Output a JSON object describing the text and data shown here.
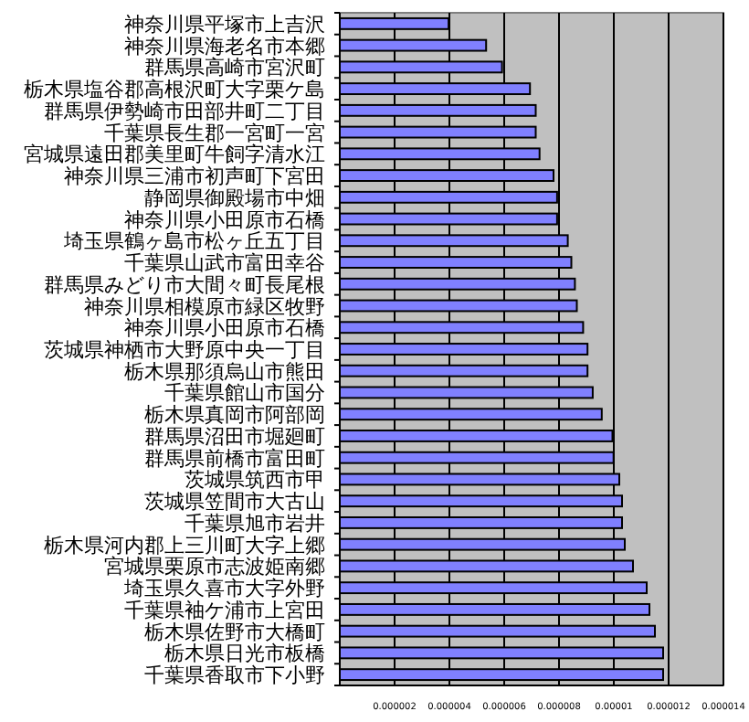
{
  "chart_data": {
    "type": "bar",
    "orientation": "horizontal",
    "categories": [
      "神奈川県平塚市上吉沢",
      "神奈川県海老名市本郷",
      "群馬県高崎市宮沢町",
      "栃木県塩谷郡高根沢町大字栗ケ島",
      "群馬県伊勢崎市田部井町二丁目",
      "千葉県長生郡一宮町一宮",
      "宮城県遠田郡美里町牛飼字清水江",
      "神奈川県三浦市初声町下宮田",
      "静岡県御殿場市中畑",
      "神奈川県小田原市石橋",
      "埼玉県鶴ヶ島市松ヶ丘五丁目",
      "千葉県山武市富田幸谷",
      "群馬県みどり市大間々町長尾根",
      "神奈川県相模原市緑区牧野",
      "神奈川県小田原市石橋",
      "茨城県神栖市大野原中央一丁目",
      "栃木県那須烏山市熊田",
      "千葉県館山市国分",
      "栃木県真岡市阿部岡",
      "群馬県沼田市堀廻町",
      "群馬県前橋市富田町",
      "茨城県筑西市甲",
      "茨城県笠間市大古山",
      "千葉県旭市岩井",
      "栃木県河内郡上三川町大字上郷",
      "宮城県栗原市志波姫南郷",
      "埼玉県久喜市大字外野",
      "千葉県袖ケ浦市上宮田",
      "栃木県佐野市大橋町",
      "栃木県日光市板橋",
      "千葉県香取市下小野"
    ],
    "values": [
      3.97e-06,
      5.34e-06,
      5.92e-06,
      6.94e-06,
      7.15e-06,
      7.15e-06,
      7.29e-06,
      7.8e-06,
      7.93e-06,
      7.93e-06,
      8.32e-06,
      8.45e-06,
      8.58e-06,
      8.65e-06,
      8.88e-06,
      9.04e-06,
      9.04e-06,
      9.23e-06,
      9.56e-06,
      9.95e-06,
      9.99e-06,
      1.02e-05,
      1.03e-05,
      1.03e-05,
      1.04e-05,
      1.07e-05,
      1.12e-05,
      1.13e-05,
      1.15e-05,
      1.18e-05,
      1.18e-05
    ],
    "color": "#8080ff",
    "xlim": [
      0,
      1.4e-05
    ],
    "xticks": [
      {
        "value": 2e-06,
        "label": "0.000002"
      },
      {
        "value": 4e-06,
        "label": "0.000004"
      },
      {
        "value": 6e-06,
        "label": "0.000006"
      },
      {
        "value": 8e-06,
        "label": "0.000008"
      },
      {
        "value": 1e-05,
        "label": "0.00001"
      },
      {
        "value": 1.2e-05,
        "label": "0.000012"
      },
      {
        "value": 1.4e-05,
        "label": "0.000014"
      }
    ],
    "grid": "x"
  }
}
